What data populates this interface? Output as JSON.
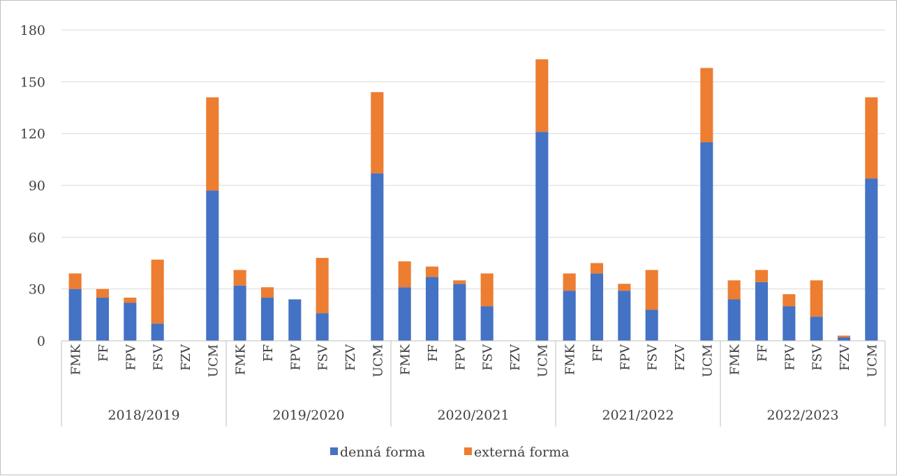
{
  "chart_data": {
    "type": "bar",
    "stacked": true,
    "groups": [
      "2018/2019",
      "2019/2020",
      "2020/2021",
      "2021/2022",
      "2022/2023"
    ],
    "categories": [
      "FMK",
      "FF",
      "FPV",
      "FSV",
      "FZV",
      "UCM"
    ],
    "series": [
      {
        "name": "denná forma",
        "color": "#4472c4",
        "values": [
          [
            30,
            25,
            22,
            10,
            0,
            87
          ],
          [
            32,
            25,
            24,
            16,
            0,
            97
          ],
          [
            31,
            37,
            33,
            20,
            0,
            121
          ],
          [
            29,
            39,
            29,
            18,
            0,
            115
          ],
          [
            24,
            34,
            20,
            14,
            2,
            94
          ]
        ]
      },
      {
        "name": "externá forma",
        "color": "#ed7d31",
        "values": [
          [
            9,
            5,
            3,
            37,
            0,
            54
          ],
          [
            9,
            6,
            0,
            32,
            0,
            47
          ],
          [
            15,
            6,
            2,
            19,
            0,
            42
          ],
          [
            10,
            6,
            4,
            23,
            0,
            43
          ],
          [
            11,
            7,
            7,
            21,
            1,
            47
          ]
        ]
      }
    ],
    "ylim": [
      0,
      180
    ],
    "yticks": [
      0,
      30,
      60,
      90,
      120,
      150,
      180
    ],
    "grid": true,
    "legend": "bottom",
    "title": "",
    "xlabel": "",
    "ylabel": ""
  }
}
